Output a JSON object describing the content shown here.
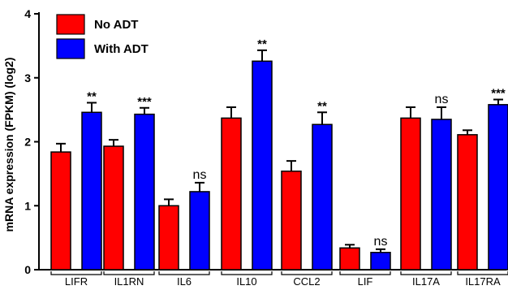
{
  "chart_data": {
    "type": "bar",
    "title": "",
    "xlabel": "",
    "ylabel": "mRNA expression (FPKM) (log2)",
    "ylim": [
      0,
      4
    ],
    "yticks": [
      0,
      1,
      2,
      3,
      4
    ],
    "grid": false,
    "legend_position": "top-left",
    "categories": [
      "LIFR",
      "IL1RN",
      "IL6",
      "IL10",
      "CCL2",
      "LIF",
      "IL17A",
      "IL17RA"
    ],
    "series": [
      {
        "name": "No ADT",
        "color": "#ff0000",
        "values": [
          1.84,
          1.93,
          1.0,
          2.37,
          1.54,
          0.34,
          2.37,
          2.11
        ],
        "errors": [
          0.13,
          0.1,
          0.1,
          0.17,
          0.16,
          0.05,
          0.17,
          0.07
        ]
      },
      {
        "name": "With ADT",
        "color": "#0000ff",
        "values": [
          2.46,
          2.43,
          1.22,
          3.26,
          2.27,
          0.27,
          2.35,
          2.58
        ],
        "errors": [
          0.15,
          0.1,
          0.14,
          0.17,
          0.19,
          0.05,
          0.19,
          0.08
        ]
      }
    ],
    "annotations": [
      "**",
      "***",
      "ns",
      "**",
      "**",
      "ns",
      "ns",
      "***"
    ]
  }
}
